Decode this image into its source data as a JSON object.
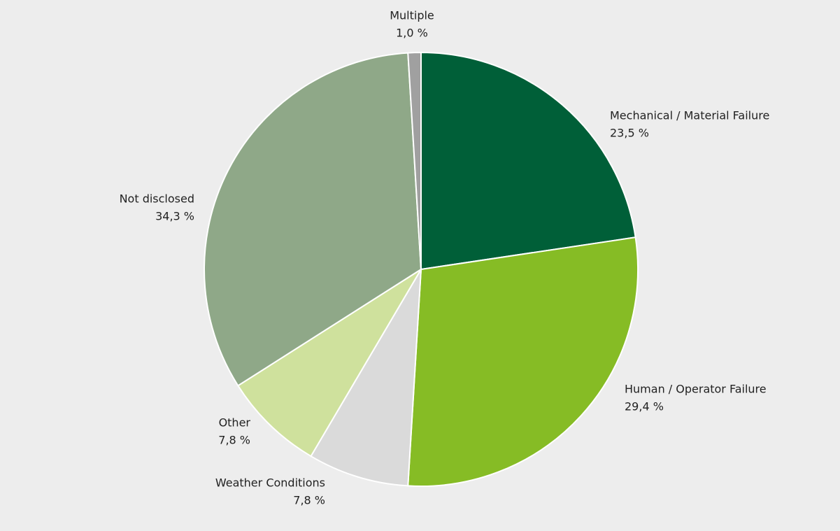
{
  "chart_data": {
    "type": "pie",
    "categories": [
      "Mechanical / Material Failure",
      "Human / Operator Failure",
      "Weather Conditions",
      "Other",
      "Not disclosed",
      "Multiple"
    ],
    "values": [
      23.5,
      29.4,
      7.8,
      7.8,
      34.3,
      1.0
    ],
    "value_labels": [
      "23,5 %",
      "29,4 %",
      "7,8 %",
      "7,8 %",
      "34,3 %",
      "1,0 %"
    ],
    "colors": [
      "#005f38",
      "#86bc25",
      "#dadada",
      "#cfe19d",
      "#8fa888",
      "#a0a0a0"
    ]
  }
}
